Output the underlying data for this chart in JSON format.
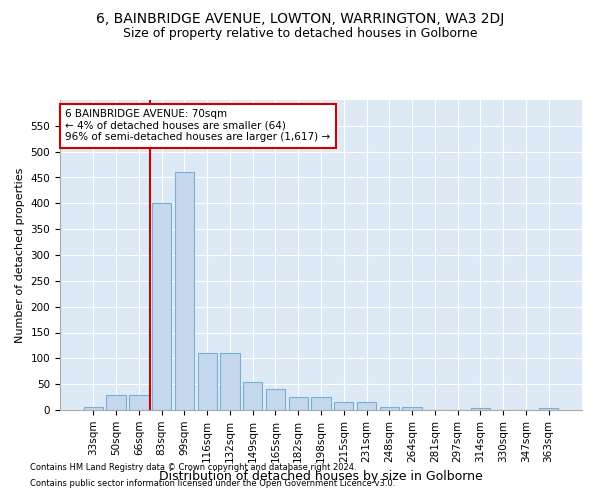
{
  "title1": "6, BAINBRIDGE AVENUE, LOWTON, WARRINGTON, WA3 2DJ",
  "title2": "Size of property relative to detached houses in Golborne",
  "xlabel": "Distribution of detached houses by size in Golborne",
  "ylabel": "Number of detached properties",
  "categories": [
    "33sqm",
    "50sqm",
    "66sqm",
    "83sqm",
    "99sqm",
    "116sqm",
    "132sqm",
    "149sqm",
    "165sqm",
    "182sqm",
    "198sqm",
    "215sqm",
    "231sqm",
    "248sqm",
    "264sqm",
    "281sqm",
    "297sqm",
    "314sqm",
    "330sqm",
    "347sqm",
    "363sqm"
  ],
  "values": [
    5,
    30,
    30,
    400,
    460,
    110,
    110,
    55,
    40,
    25,
    25,
    15,
    15,
    5,
    5,
    0,
    0,
    3,
    0,
    0,
    3
  ],
  "bar_color": "#c5d8ee",
  "bar_edge_color": "#7aafd4",
  "red_line_index": 2.5,
  "annotation_text": "6 BAINBRIDGE AVENUE: 70sqm\n← 4% of detached houses are smaller (64)\n96% of semi-detached houses are larger (1,617) →",
  "annotation_box_color": "#ffffff",
  "annotation_box_edge": "#cc0000",
  "red_line_color": "#cc0000",
  "footnote1": "Contains HM Land Registry data © Crown copyright and database right 2024.",
  "footnote2": "Contains public sector information licensed under the Open Government Licence v3.0.",
  "ylim": [
    0,
    600
  ],
  "yticks": [
    0,
    50,
    100,
    150,
    200,
    250,
    300,
    350,
    400,
    450,
    500,
    550
  ],
  "title1_fontsize": 10,
  "title2_fontsize": 9,
  "xlabel_fontsize": 9,
  "ylabel_fontsize": 8,
  "tick_fontsize": 7.5,
  "annot_fontsize": 7.5
}
